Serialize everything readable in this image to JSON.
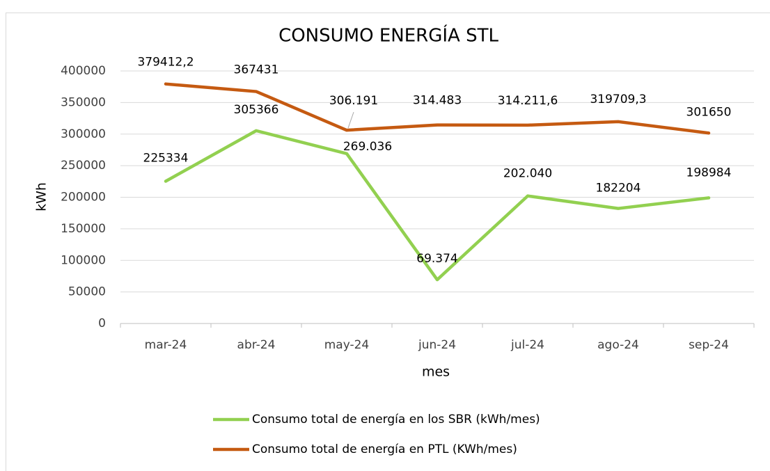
{
  "chart_data": {
    "type": "line",
    "title": "CONSUMO ENERGÍA STL",
    "x_label": "mes",
    "y_label": "kWh",
    "categories": [
      "mar-24",
      "abr-24",
      "may-24",
      "jun-24",
      "jul-24",
      "ago-24",
      "sep-24"
    ],
    "series": [
      {
        "name": "Consumo total de energía en los SBR (kWh/mes)",
        "color": "#92d050",
        "values": [
          225334,
          305366,
          269036,
          69374,
          202040,
          182204,
          198984
        ],
        "value_labels": [
          "225334",
          "305366",
          "269.036",
          "69.374",
          "202.040",
          "182204",
          "198984"
        ]
      },
      {
        "name": "Consumo total de energía en PTL (KWh/mes)",
        "color": "#c55a11",
        "values": [
          379412.2,
          367431,
          306191,
          314483,
          314211.6,
          319709.3,
          301650
        ],
        "value_labels": [
          "379412,2",
          "367431",
          "306.191",
          "314.483",
          "314.211,6",
          "319709,3",
          "301650"
        ]
      }
    ],
    "ylim": [
      0,
      400000
    ],
    "yticks": [
      0,
      50000,
      100000,
      150000,
      200000,
      250000,
      300000,
      350000,
      400000
    ],
    "grid": true,
    "legend": "bottom"
  }
}
